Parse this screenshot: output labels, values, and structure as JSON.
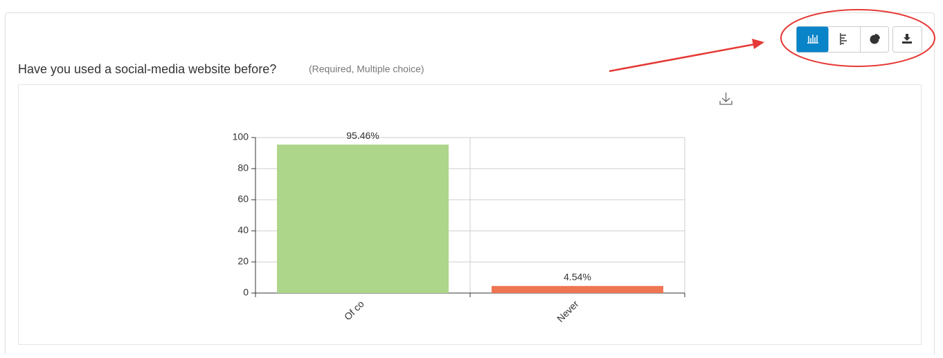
{
  "question": {
    "title": "Have you used a social-media website before?",
    "note": "(Required, Multiple choice)"
  },
  "chart_data": {
    "type": "bar",
    "categories": [
      "Of co",
      "Never"
    ],
    "values": [
      95.46,
      4.54
    ],
    "value_labels": [
      "95.46%",
      "4.54%"
    ],
    "colors": [
      "#aed68a",
      "#f07552"
    ],
    "ylim": [
      0,
      100
    ],
    "yticks": [
      0,
      20,
      40,
      60,
      80,
      100
    ],
    "grid": true
  }
}
